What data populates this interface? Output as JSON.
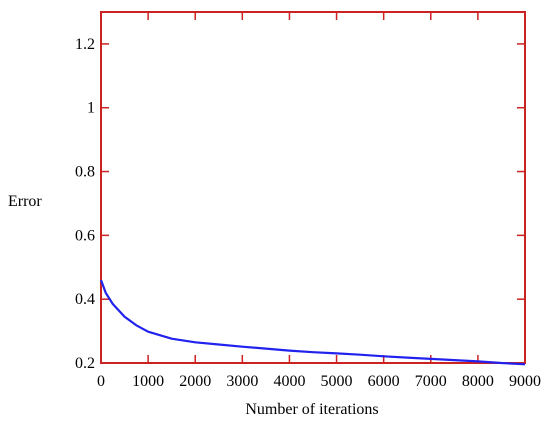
{
  "chart_data": {
    "type": "line",
    "title": "",
    "xlabel": "Number of iterations",
    "ylabel": "Error",
    "xlim": [
      0,
      9000
    ],
    "ylim": [
      0.2,
      1.3
    ],
    "x_ticks": [
      0,
      1000,
      2000,
      3000,
      4000,
      5000,
      6000,
      7000,
      8000,
      9000
    ],
    "x_tick_labels": [
      "0",
      "1000",
      "2000",
      "3000",
      "4000",
      "5000",
      "6000",
      "7000",
      "8000",
      "9000"
    ],
    "y_ticks": [
      0.2,
      0.4,
      0.6,
      0.8,
      1,
      1.2
    ],
    "y_tick_labels": [
      "0.2",
      "0.4",
      "0.6",
      "0.8",
      "1",
      "1.2"
    ],
    "grid": false,
    "colors": {
      "frame": "#cc2222",
      "line": "#2222ee"
    },
    "series": [
      {
        "x": [
          0,
          100,
          250,
          500,
          750,
          1000,
          1500,
          2000,
          2500,
          3000,
          3500,
          4000,
          4500,
          5000,
          5500,
          6000,
          6500,
          7000,
          7500,
          8000,
          8500,
          9000
        ],
        "y": [
          0.46,
          0.42,
          0.385,
          0.345,
          0.318,
          0.298,
          0.276,
          0.265,
          0.258,
          0.251,
          0.245,
          0.239,
          0.234,
          0.23,
          0.226,
          0.221,
          0.217,
          0.213,
          0.209,
          0.205,
          0.2,
          0.196
        ]
      }
    ]
  }
}
